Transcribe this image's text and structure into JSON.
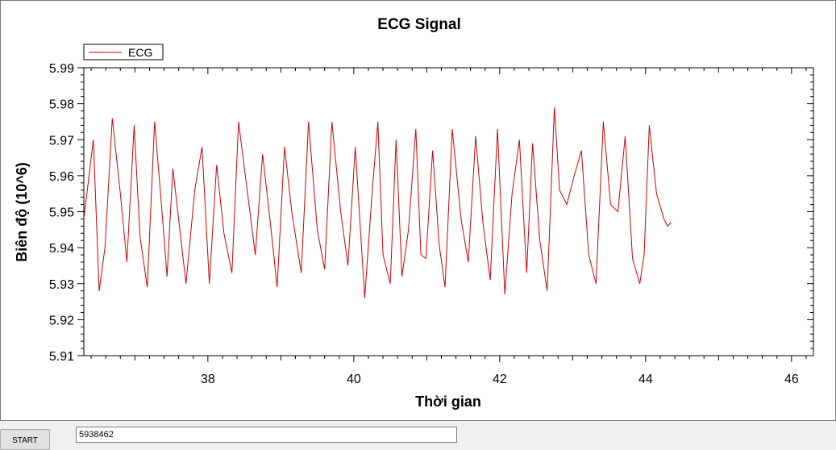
{
  "chart_data": {
    "type": "line",
    "title": "ECG Signal",
    "xlabel": "Thời gian",
    "ylabel": "Biên độ (10^6)",
    "xlim": [
      36.3,
      46.3
    ],
    "ylim": [
      5.91,
      5.99
    ],
    "x_ticks": [
      38,
      40,
      42,
      44,
      46
    ],
    "y_ticks": [
      5.91,
      5.92,
      5.93,
      5.94,
      5.95,
      5.96,
      5.97,
      5.98,
      5.99
    ],
    "grid": false,
    "legend": "top-left",
    "series": [
      {
        "name": "ECG",
        "color": "#cc0000",
        "x": [
          36.3,
          36.43,
          36.51,
          36.59,
          36.69,
          36.8,
          36.89,
          36.99,
          37.07,
          37.17,
          37.27,
          37.36,
          37.44,
          37.52,
          37.61,
          37.7,
          37.82,
          37.92,
          38.02,
          38.12,
          38.22,
          38.33,
          38.42,
          38.52,
          38.65,
          38.75,
          38.85,
          38.95,
          39.05,
          39.15,
          39.28,
          39.38,
          39.5,
          39.6,
          39.7,
          39.82,
          39.92,
          40.02,
          40.15,
          40.25,
          40.33,
          40.4,
          40.5,
          40.58,
          40.66,
          40.75,
          40.85,
          40.92,
          40.99,
          41.08,
          41.17,
          41.25,
          41.35,
          41.47,
          41.57,
          41.67,
          41.77,
          41.87,
          41.97,
          42.07,
          42.17,
          42.27,
          42.37,
          42.45,
          42.55,
          42.65,
          42.75,
          42.82,
          42.92,
          43.02,
          43.12,
          43.22,
          43.32,
          43.42,
          43.52,
          43.62,
          43.72,
          43.82,
          43.92,
          43.98,
          44.05,
          44.15,
          44.25,
          44.3,
          44.35
        ],
        "y": [
          5.948,
          5.97,
          5.928,
          5.94,
          5.976,
          5.955,
          5.936,
          5.974,
          5.943,
          5.929,
          5.975,
          5.953,
          5.932,
          5.962,
          5.946,
          5.93,
          5.956,
          5.968,
          5.93,
          5.963,
          5.944,
          5.933,
          5.975,
          5.959,
          5.938,
          5.966,
          5.948,
          5.929,
          5.968,
          5.95,
          5.933,
          5.975,
          5.945,
          5.934,
          5.975,
          5.95,
          5.935,
          5.968,
          5.926,
          5.955,
          5.975,
          5.938,
          5.93,
          5.97,
          5.932,
          5.945,
          5.973,
          5.938,
          5.937,
          5.967,
          5.941,
          5.929,
          5.973,
          5.948,
          5.936,
          5.971,
          5.947,
          5.931,
          5.973,
          5.927,
          5.955,
          5.97,
          5.933,
          5.969,
          5.942,
          5.928,
          5.979,
          5.956,
          5.952,
          5.96,
          5.967,
          5.938,
          5.93,
          5.975,
          5.952,
          5.95,
          5.971,
          5.937,
          5.93,
          5.938,
          5.974,
          5.955,
          5.948,
          5.946,
          5.947
        ]
      }
    ]
  },
  "controls": {
    "start_label": "START",
    "value_input": "5938462"
  }
}
